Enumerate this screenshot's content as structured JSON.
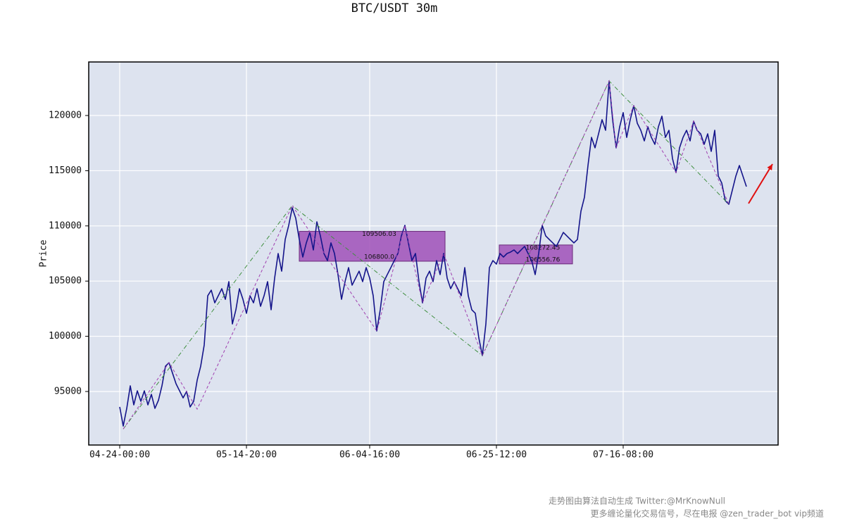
{
  "chart_data": {
    "type": "line",
    "title": "BTC/USDT 30m",
    "y_label": "Price",
    "categories": [
      "04-24-00:00",
      null,
      null,
      null,
      null,
      null,
      null,
      null,
      null,
      null,
      null,
      null,
      null,
      null,
      null,
      null,
      null,
      null,
      null,
      null,
      null,
      null,
      null,
      null,
      null,
      null,
      null,
      null,
      null,
      null,
      null,
      null,
      null,
      null,
      null,
      null,
      "05-14-20:00",
      null,
      null,
      null,
      null,
      null,
      null,
      null,
      null,
      null,
      null,
      null,
      null,
      null,
      null,
      null,
      null,
      null,
      null,
      null,
      null,
      null,
      null,
      null,
      null,
      null,
      null,
      null,
      null,
      null,
      null,
      null,
      null,
      null,
      null,
      "06-04-16:00",
      null,
      null,
      null,
      null,
      null,
      null,
      null,
      null,
      null,
      null,
      null,
      null,
      null,
      null,
      null,
      null,
      null,
      null,
      null,
      null,
      null,
      null,
      null,
      null,
      null,
      null,
      null,
      null,
      null,
      null,
      null,
      null,
      null,
      null,
      null,
      "06-25-12:00",
      null,
      null,
      null,
      null,
      null,
      null,
      null,
      null,
      null,
      null,
      null,
      null,
      null,
      null,
      null,
      null,
      null,
      null,
      null,
      null,
      null,
      null,
      null,
      null,
      null,
      null,
      null,
      null,
      null,
      null,
      null,
      null,
      null,
      null,
      null,
      "07-16-08:00",
      null,
      null,
      null,
      null,
      null,
      null,
      null,
      null,
      null,
      null,
      null,
      null,
      null,
      null,
      null,
      null,
      null,
      null,
      null,
      null,
      null,
      null,
      null,
      null,
      null,
      null,
      null,
      null,
      null,
      null,
      null,
      null,
      null,
      null,
      null
    ],
    "series": [
      {
        "color": "#14148a",
        "values": [
          93600,
          91870,
          93470,
          95510,
          93790,
          95060,
          94110,
          95060,
          93790,
          94740,
          93470,
          94200,
          95510,
          97290,
          97610,
          96660,
          95700,
          95060,
          94420,
          95000,
          93600,
          94110,
          96020,
          97290,
          99210,
          103670,
          104180,
          103030,
          103670,
          104310,
          103350,
          104950,
          101120,
          102400,
          104310,
          103350,
          102080,
          103670,
          103030,
          104310,
          102720,
          103670,
          104950,
          102400,
          105270,
          107500,
          105900,
          108770,
          110050,
          111640,
          110690,
          108770,
          107180,
          108460,
          109410,
          107820,
          110370,
          109090,
          107500,
          106860,
          108460,
          107500,
          105590,
          103350,
          104950,
          106220,
          104630,
          105270,
          105900,
          104950,
          106220,
          105270,
          103670,
          100480,
          102400,
          104950,
          105590,
          106220,
          106860,
          107500,
          109090,
          110050,
          108460,
          106860,
          107500,
          104950,
          103030,
          105270,
          105900,
          104950,
          106860,
          105590,
          107500,
          105270,
          104310,
          104950,
          104310,
          103670,
          106220,
          103670,
          102400,
          102080,
          99850,
          98250,
          101120,
          106220,
          106860,
          106540,
          107500,
          107180,
          107500,
          107630,
          107820,
          107500,
          107820,
          108140,
          107500,
          106860,
          105590,
          107500,
          110050,
          109090,
          108770,
          108460,
          108140,
          108770,
          109410,
          109090,
          108770,
          108460,
          108770,
          111330,
          112600,
          115470,
          118020,
          117070,
          118340,
          119620,
          118660,
          123130,
          119620,
          117070,
          118980,
          120260,
          118020,
          119620,
          120890,
          119300,
          118660,
          117700,
          118980,
          118020,
          117390,
          118980,
          119940,
          118020,
          118660,
          116110,
          114830,
          117070,
          118020,
          118660,
          117700,
          119490,
          118660,
          118340,
          117390,
          118340,
          116750,
          118660,
          114520,
          113880,
          112280,
          111960,
          113240,
          114520,
          115470,
          114520,
          113560
        ]
      }
    ],
    "zigzags": [
      {
        "color": "#3f8f3f",
        "x": [
          1,
          49,
          103,
          139,
          173
        ],
        "values": [
          91600,
          111840,
          98250,
          123130,
          111960
        ]
      },
      {
        "color": "#a040b0",
        "x": [
          1,
          14,
          22,
          49,
          73,
          81,
          86,
          92,
          103,
          120,
          139,
          141,
          146,
          158,
          163,
          173
        ],
        "values": [
          91600,
          97610,
          93400,
          111840,
          100480,
          110050,
          103030,
          107500,
          98250,
          110050,
          123130,
          117070,
          120890,
          114830,
          119490,
          111960
        ]
      }
    ],
    "forecast": {
      "color": "#e01010",
      "x": [
        178.6,
        185.4
      ],
      "values": [
        112030,
        115600
      ]
    },
    "zones": [
      {
        "color": "#a050b8",
        "x": [
          51,
          92.4
        ],
        "values": [
          109506.03,
          106800
        ],
        "value_labels": [
          "109506.03",
          "106800.0"
        ]
      },
      {
        "color": "#a050b8",
        "x": [
          107.8,
          128.6
        ],
        "values": [
          108272.45,
          106556.76
        ],
        "value_labels": [
          "108272.45",
          "106556.76"
        ]
      }
    ],
    "ylim": [
      90150,
      124850
    ],
    "yticks": [
      95000,
      100000,
      105000,
      110000,
      115000,
      120000
    ],
    "grid": true
  },
  "footer": [
    "走势图由算法自动生成  Twitter:@MrKnowNull",
    "更多缠论量化交易信号，尽在电报 @zen_trader_bot vip频道"
  ]
}
